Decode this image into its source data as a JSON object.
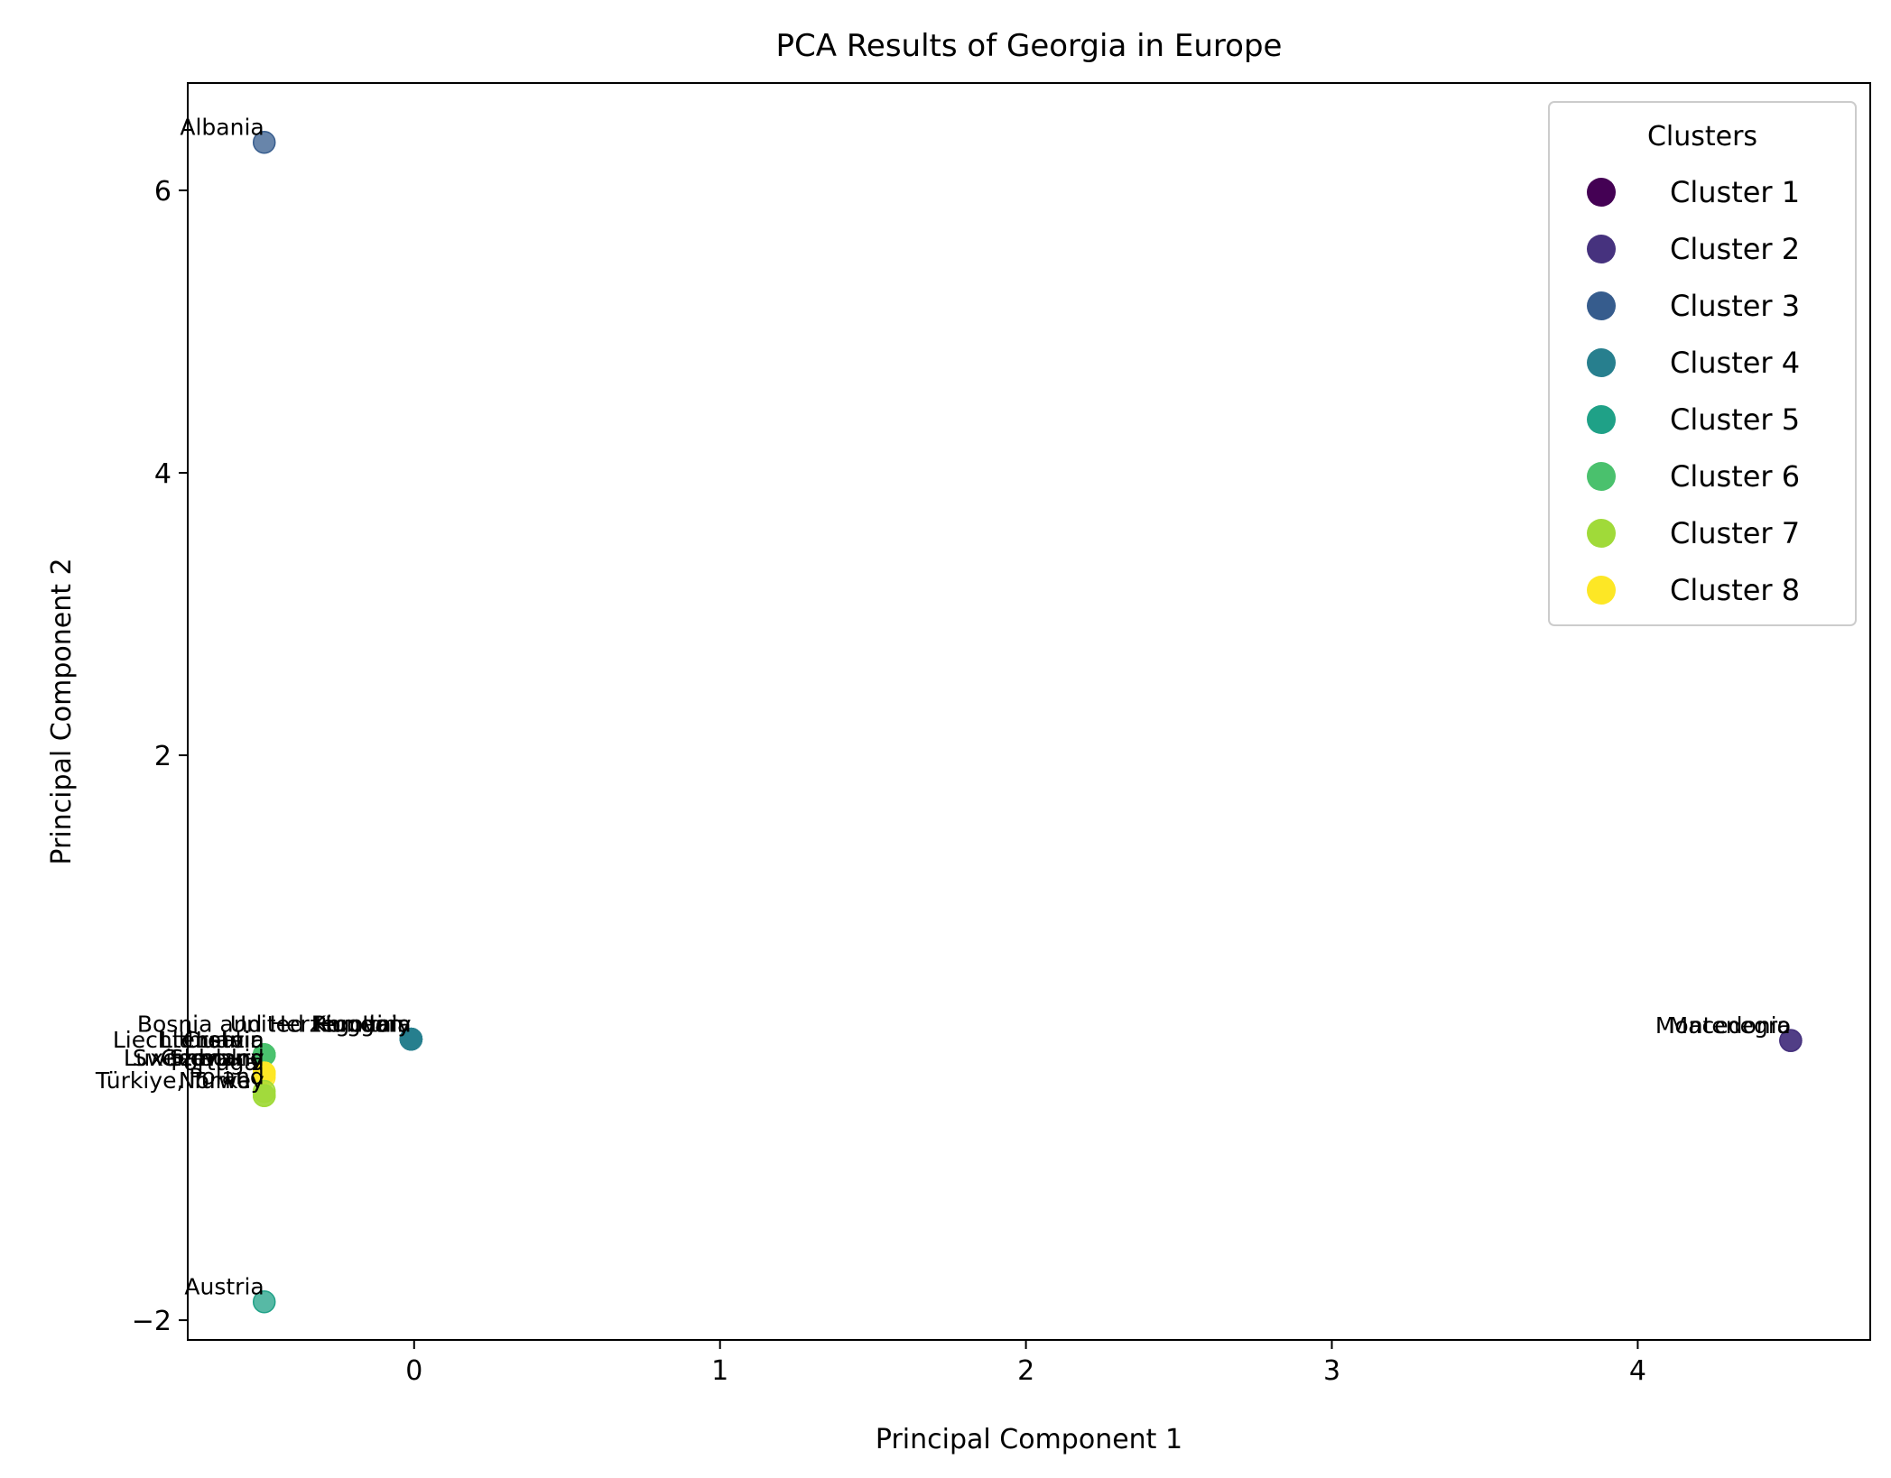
{
  "chart_data": {
    "type": "scatter",
    "title": "PCA Results of Georgia in Europe",
    "xlabel": "Principal Component 1",
    "ylabel": "Principal Component 2",
    "xlim": [
      -0.74,
      4.76
    ],
    "ylim": [
      -2.14,
      6.76
    ],
    "xticks": [
      0,
      1,
      2,
      3,
      4
    ],
    "yticks": [
      -2,
      2,
      4,
      6
    ],
    "tick_labels_x": [
      "0",
      "1",
      "2",
      "3",
      "4"
    ],
    "tick_labels_y": [
      "−2",
      "2",
      "4",
      "6"
    ],
    "grid": false,
    "legend": {
      "title": "Clusters",
      "placement": "top-right",
      "entries": [
        {
          "name": "Cluster 1",
          "color": "#440154"
        },
        {
          "name": "Cluster 2",
          "color": "#46327e"
        },
        {
          "name": "Cluster 3",
          "color": "#365c8d"
        },
        {
          "name": "Cluster 4",
          "color": "#277f8e"
        },
        {
          "name": "Cluster 5",
          "color": "#1fa187"
        },
        {
          "name": "Cluster 6",
          "color": "#4ac16d"
        },
        {
          "name": "Cluster 7",
          "color": "#a0da39"
        },
        {
          "name": "Cluster 8",
          "color": "#fde725"
        }
      ]
    },
    "points": [
      {
        "label": "Albania",
        "x": -0.49,
        "y": 6.34,
        "cluster": 3
      },
      {
        "label": "Austria",
        "x": -0.49,
        "y": -1.87,
        "cluster": 5
      },
      {
        "label": "Montenegro",
        "x": 4.5,
        "y": -0.02,
        "cluster": 2
      },
      {
        "label": "Macedonia",
        "x": 4.5,
        "y": -0.02,
        "cluster": 2
      },
      {
        "label": "Bosnia and Herzegovina",
        "x": -0.01,
        "y": -0.01,
        "cluster": 4
      },
      {
        "label": "United Kingdom",
        "x": -0.01,
        "y": -0.01,
        "cluster": 4
      },
      {
        "label": "Romania",
        "x": -0.01,
        "y": -0.01,
        "cluster": 4
      },
      {
        "label": "Hungary",
        "x": -0.01,
        "y": -0.01,
        "cluster": 4
      },
      {
        "label": "Italy",
        "x": -0.01,
        "y": -0.01,
        "cluster": 4
      },
      {
        "label": "Liechtenstein",
        "x": -0.49,
        "y": -0.12,
        "cluster": 6
      },
      {
        "label": "Lithuania",
        "x": -0.49,
        "y": -0.12,
        "cluster": 6
      },
      {
        "label": "Croatia",
        "x": -0.49,
        "y": -0.12,
        "cluster": 6
      },
      {
        "label": "Latvia",
        "x": -0.49,
        "y": -0.12,
        "cluster": 6
      },
      {
        "label": "Luxembourg",
        "x": -0.49,
        "y": -0.25,
        "cluster": 8
      },
      {
        "label": "Switzerland",
        "x": -0.49,
        "y": -0.25,
        "cluster": 8
      },
      {
        "label": "Germany",
        "x": -0.49,
        "y": -0.25,
        "cluster": 8
      },
      {
        "label": "Slovakia",
        "x": -0.49,
        "y": -0.25,
        "cluster": 8
      },
      {
        "label": "Portugal",
        "x": -0.49,
        "y": -0.28,
        "cluster": 8
      },
      {
        "label": "Türkiye, Turkey",
        "x": -0.49,
        "y": -0.41,
        "cluster": 7
      },
      {
        "label": "Norway",
        "x": -0.49,
        "y": -0.41,
        "cluster": 7
      },
      {
        "label": "Poland",
        "x": -0.49,
        "y": -0.38,
        "cluster": 7
      }
    ]
  }
}
